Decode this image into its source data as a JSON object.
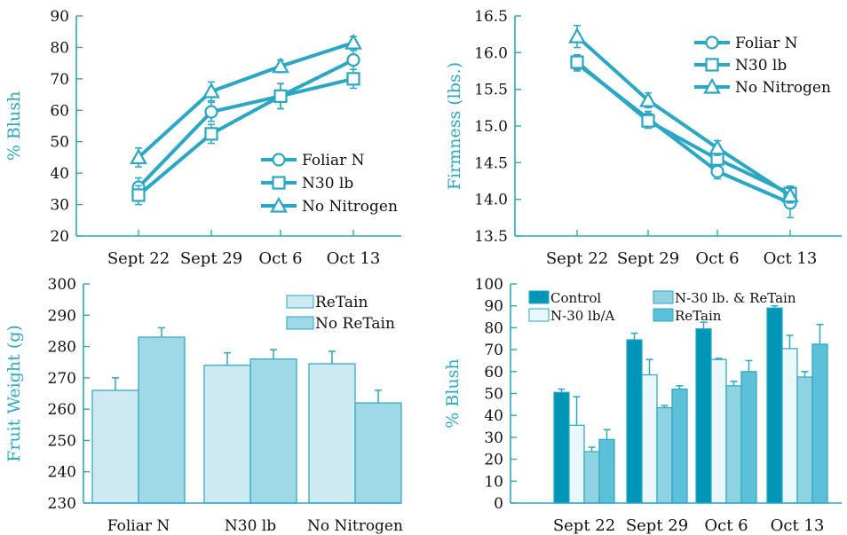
{
  "colors": {
    "axis": "#2aa8c2",
    "line": "#29a7c4",
    "text": "#111111",
    "ylabel": "#2aa8c2",
    "bar_light": "#cdeaf2",
    "bar_mid": "#9fd8e6",
    "bar_dark": "#0096b8",
    "bar_pale": "#eaf7fb",
    "bar_medium": "#8fd3e3",
    "bar_teal": "#5cc0d8"
  },
  "chart_data": [
    {
      "id": "top-left",
      "type": "line",
      "ylabel": "% Blush",
      "categories": [
        "Sept 22",
        "Sept 29",
        "Oct 6",
        "Oct 13"
      ],
      "ylim": [
        20,
        90
      ],
      "yticks": [
        20,
        30,
        40,
        50,
        60,
        70,
        80,
        90
      ],
      "legend_position": "bottom-right",
      "series": [
        {
          "name": "Foliar N",
          "marker": "circle",
          "values": [
            35.5,
            59.5,
            64.5,
            76
          ],
          "errors": [
            3,
            3,
            4,
            3
          ]
        },
        {
          "name": "N30 lb",
          "marker": "square",
          "values": [
            33,
            52.5,
            64.5,
            70
          ],
          "errors": [
            3,
            3,
            4,
            3
          ]
        },
        {
          "name": "No Nitrogen",
          "marker": "triangle",
          "values": [
            45,
            66,
            74,
            81.5
          ],
          "errors": [
            3,
            3,
            2,
            2
          ]
        }
      ]
    },
    {
      "id": "top-right",
      "type": "line",
      "ylabel": "Firmness (lbs.)",
      "categories": [
        "Sept 22",
        "Sept 29",
        "Oct 6",
        "Oct 13"
      ],
      "ylim": [
        13.5,
        16.5
      ],
      "yticks": [
        13.5,
        14.0,
        14.5,
        15.0,
        15.5,
        16.0,
        16.5
      ],
      "ytick_labels": [
        "13.5",
        "14.0",
        "14.5",
        "15.0",
        "15.5",
        "16.0",
        "16.5"
      ],
      "legend_position": "top-right",
      "series": [
        {
          "name": "Foliar N",
          "marker": "circle",
          "values": [
            15.85,
            15.1,
            14.38,
            13.95
          ],
          "errors": [
            0.1,
            0.1,
            0.1,
            0.2
          ]
        },
        {
          "name": "N30 lb",
          "marker": "square",
          "values": [
            15.87,
            15.07,
            14.55,
            14.08
          ],
          "errors": [
            0.1,
            0.1,
            0.1,
            0.1
          ]
        },
        {
          "name": "No Nitrogen",
          "marker": "triangle",
          "values": [
            16.22,
            15.35,
            14.7,
            14.05
          ],
          "errors": [
            0.15,
            0.1,
            0.1,
            0.1
          ]
        }
      ]
    },
    {
      "id": "bottom-left",
      "type": "bar",
      "ylabel": "Fruit Weight (g)",
      "categories": [
        "Foliar N",
        "N30 lb",
        "No Nitrogen"
      ],
      "ylim": [
        230,
        300
      ],
      "yticks": [
        230,
        240,
        250,
        260,
        270,
        280,
        290,
        300
      ],
      "legend_position": "top-right",
      "series": [
        {
          "name": "ReTain",
          "color": "bar_light",
          "values": [
            266,
            274,
            274.5
          ],
          "errors": [
            4,
            4,
            4
          ]
        },
        {
          "name": "No ReTain",
          "color": "bar_mid",
          "values": [
            283,
            276,
            262
          ],
          "errors": [
            3,
            3,
            4
          ]
        }
      ]
    },
    {
      "id": "bottom-right",
      "type": "bar",
      "ylabel": "% Blush",
      "categories": [
        "Sept 22",
        "Sept 29",
        "Oct 6",
        "Oct 13"
      ],
      "ylim": [
        0,
        100
      ],
      "yticks": [
        0,
        10,
        20,
        30,
        40,
        50,
        60,
        70,
        80,
        90,
        100
      ],
      "legend_position": "top",
      "series": [
        {
          "name": "Control",
          "color": "bar_dark",
          "values": [
            50.5,
            74.5,
            79.5,
            89
          ],
          "errors": [
            1.5,
            3,
            3,
            1
          ]
        },
        {
          "name": "N-30 lb/A",
          "color": "bar_pale",
          "values": [
            35.5,
            58.5,
            65.5,
            70.5
          ],
          "errors": [
            13,
            7,
            0.5,
            6
          ]
        },
        {
          "name": "N-30 lb. & ReTain",
          "color": "bar_medium",
          "values": [
            23.5,
            43.5,
            53.5,
            57.5
          ],
          "errors": [
            2,
            1,
            2,
            2.5
          ]
        },
        {
          "name": "ReTain",
          "color": "bar_teal",
          "values": [
            29,
            52,
            60,
            72.5
          ],
          "errors": [
            4.5,
            1.5,
            5,
            9
          ]
        }
      ]
    }
  ]
}
